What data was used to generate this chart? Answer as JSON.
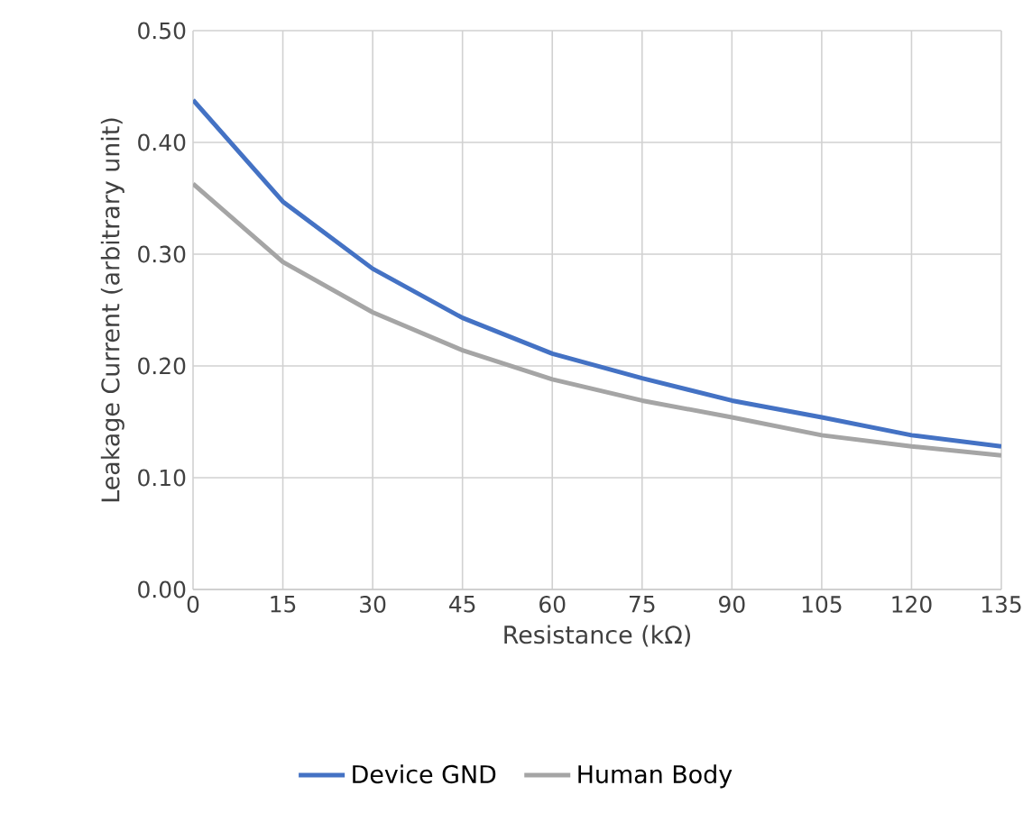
{
  "chart_data": {
    "type": "line",
    "xlabel": "Resistance (kΩ)",
    "ylabel": "Leakage Current (arbitrary unit)",
    "x": [
      0,
      15,
      30,
      45,
      60,
      75,
      90,
      105,
      120,
      135
    ],
    "series": [
      {
        "name": "Device GND",
        "color": "#4472c4",
        "values": [
          0.438,
          0.347,
          0.287,
          0.243,
          0.211,
          0.189,
          0.169,
          0.154,
          0.138,
          0.128
        ]
      },
      {
        "name": "Human Body",
        "color": "#a5a5a5",
        "values": [
          0.363,
          0.293,
          0.248,
          0.214,
          0.188,
          0.169,
          0.154,
          0.138,
          0.128,
          0.12
        ]
      }
    ],
    "xlim": [
      0,
      135
    ],
    "xticks": [
      0,
      15,
      30,
      45,
      60,
      75,
      90,
      105,
      120,
      135
    ],
    "ylim": [
      0,
      0.5
    ],
    "yticks": [
      {
        "value": 0,
        "label": "0.00"
      },
      {
        "value": 0.1,
        "label": "0.10"
      },
      {
        "value": 0.2,
        "label": "0.20"
      },
      {
        "value": 0.3,
        "label": "0.30"
      },
      {
        "value": 0.4,
        "label": "0.40"
      },
      {
        "value": 0.5,
        "label": "0.50"
      }
    ],
    "grid": true,
    "legend": "bottom",
    "marker": "none",
    "line_style": "solid"
  }
}
